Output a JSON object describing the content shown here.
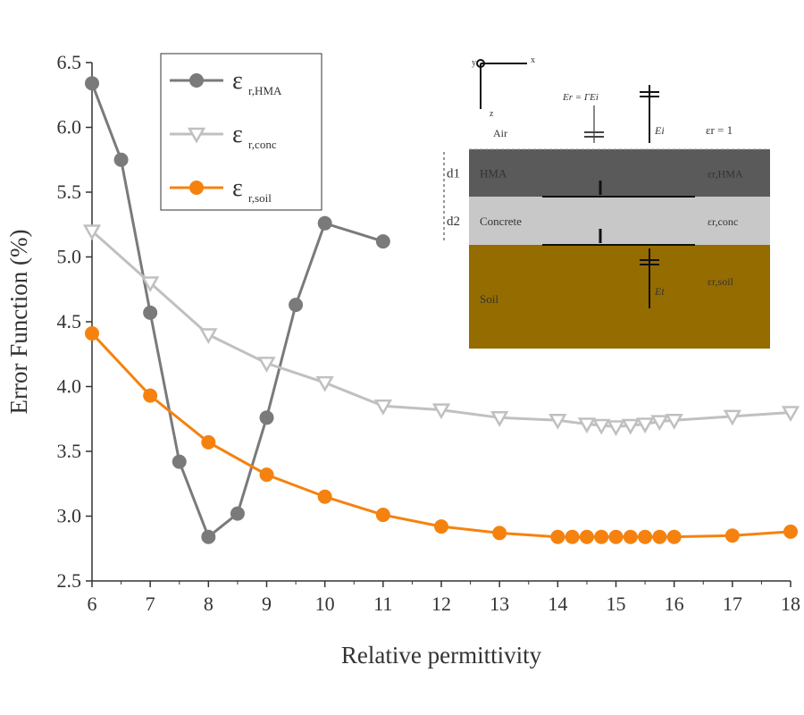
{
  "chart_data": {
    "type": "line",
    "title": "",
    "xlabel": "Relative permittivity",
    "ylabel": "Error Function (%)",
    "xlim": [
      6,
      18
    ],
    "ylim": [
      2.5,
      6.5
    ],
    "xticks": [
      "6",
      "7",
      "8",
      "9",
      "10",
      "11",
      "12",
      "13",
      "14",
      "15",
      "16",
      "17",
      "18"
    ],
    "yticks": [
      "2.5",
      "3.0",
      "3.5",
      "4.0",
      "4.5",
      "5.0",
      "5.5",
      "6.0",
      "6.5"
    ],
    "grid": false,
    "legend_placement": "top-left",
    "series": [
      {
        "name": "ε",
        "sub": "r,HMA",
        "color": "#7a7a7a",
        "marker": "circle",
        "x": [
          6,
          6.5,
          7,
          7.5,
          8,
          8.5,
          9,
          9.5,
          10,
          11
        ],
        "y": [
          6.34,
          5.75,
          4.57,
          3.42,
          2.84,
          3.02,
          3.76,
          4.63,
          5.26,
          5.12
        ]
      },
      {
        "name": "ε",
        "sub": "r,conc",
        "color": "#c0c0c0",
        "marker": "triangle-down",
        "x": [
          6,
          7,
          8,
          9,
          10,
          11,
          12,
          13,
          14,
          14.5,
          14.75,
          15,
          15.25,
          15.5,
          15.75,
          16,
          17,
          18
        ],
        "y": [
          5.2,
          4.8,
          4.4,
          4.18,
          4.03,
          3.85,
          3.82,
          3.76,
          3.74,
          3.71,
          3.7,
          3.69,
          3.7,
          3.71,
          3.73,
          3.74,
          3.77,
          3.8
        ]
      },
      {
        "name": "ε",
        "sub": "r,soil",
        "color": "#f5820f",
        "marker": "circle",
        "x": [
          6,
          7,
          8,
          9,
          10,
          11,
          12,
          13,
          14,
          14.25,
          14.5,
          14.75,
          15,
          15.25,
          15.5,
          15.75,
          16,
          17,
          18
        ],
        "y": [
          4.41,
          3.93,
          3.57,
          3.32,
          3.15,
          3.01,
          2.92,
          2.87,
          2.84,
          2.84,
          2.84,
          2.84,
          2.84,
          2.84,
          2.84,
          2.84,
          2.84,
          2.85,
          2.88
        ]
      }
    ],
    "inset": {
      "axes": {
        "x": "x",
        "y": "y",
        "z": "z"
      },
      "air": "Air",
      "air_eps": "εr = 1",
      "reflected": "Er = ΓEi",
      "incident": "Ei",
      "transmitted": "Et",
      "layers": [
        {
          "name": "HMA",
          "eps": "εr,HMA",
          "thickness": "d1",
          "color": "#5a5a5a"
        },
        {
          "name": "Concrete",
          "eps": "εr,conc",
          "thickness": "d2",
          "color": "#c8c8c8"
        },
        {
          "name": "Soil",
          "eps": "εr,soil",
          "thickness": "",
          "color": "#956c00"
        }
      ]
    }
  }
}
